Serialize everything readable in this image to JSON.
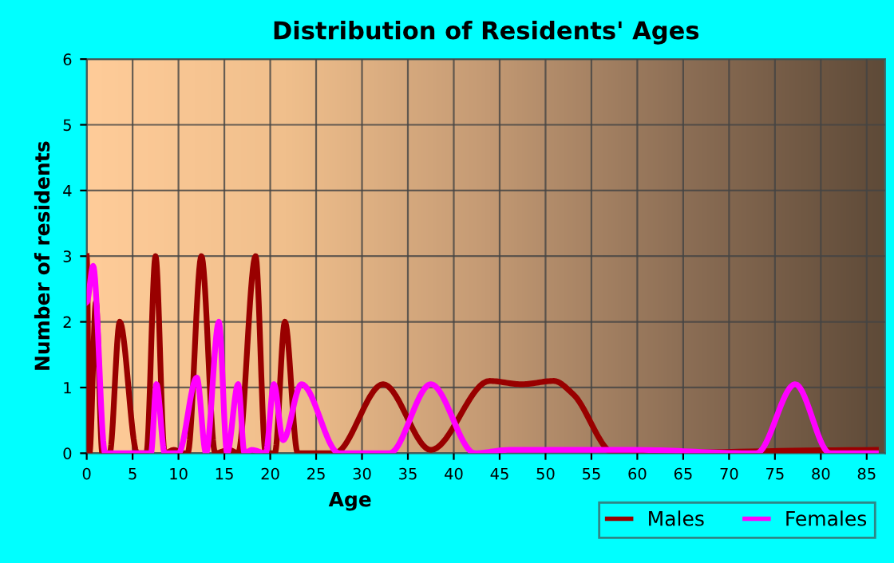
{
  "chart_data": {
    "type": "line",
    "title": "Distribution of Residents' Ages",
    "xlabel": "Age",
    "ylabel": "Number of residents",
    "xlim": [
      0,
      87
    ],
    "xticks": [
      0,
      5,
      10,
      15,
      20,
      25,
      30,
      35,
      40,
      45,
      50,
      55,
      60,
      65,
      70,
      75,
      80,
      85
    ],
    "ylim": [
      0,
      6
    ],
    "yticks": [
      0,
      1,
      2,
      3,
      4,
      5,
      6
    ],
    "grid": true,
    "legend": "bottom",
    "marker": "none",
    "line_style": "solid",
    "series": [
      {
        "name": "Males",
        "color": "#990000",
        "x": [
          0,
          0.3,
          1,
          1.7,
          2.5,
          3.6,
          5.5,
          6.5,
          7.5,
          8.5,
          9.5,
          10.5,
          11,
          12.5,
          14,
          15.5,
          16.5,
          18.4,
          19.5,
          20.5,
          21.6,
          23,
          27,
          32.3,
          37.5,
          43.9,
          47.4,
          50.9,
          53,
          57.5,
          86
        ],
        "values": [
          3,
          0,
          2.3,
          0,
          0,
          2,
          0,
          0,
          3,
          0,
          0.05,
          0,
          0,
          3,
          0,
          0.05,
          0,
          3,
          0,
          0,
          2,
          0,
          0,
          1.05,
          0.05,
          1.1,
          1.05,
          1.1,
          0.9,
          0,
          0.05
        ]
      },
      {
        "name": "Females",
        "color": "#ff00ff",
        "x": [
          0,
          0.7,
          2,
          7,
          7.6,
          8.5,
          10,
          12,
          13,
          14.4,
          15.3,
          16.5,
          17.2,
          18,
          19.5,
          20.4,
          21.4,
          23.4,
          27.5,
          33,
          37.5,
          42.3,
          46,
          56,
          60,
          72,
          73,
          77.2,
          81,
          86
        ],
        "values": [
          2.3,
          2.85,
          0,
          0,
          1.05,
          0,
          0,
          1.15,
          0,
          2,
          0,
          1.05,
          0,
          0.05,
          0,
          1.05,
          0.2,
          1.05,
          0,
          0,
          1.05,
          0,
          0.05,
          0.05,
          0.05,
          0,
          0,
          1.05,
          0,
          0
        ]
      }
    ]
  }
}
